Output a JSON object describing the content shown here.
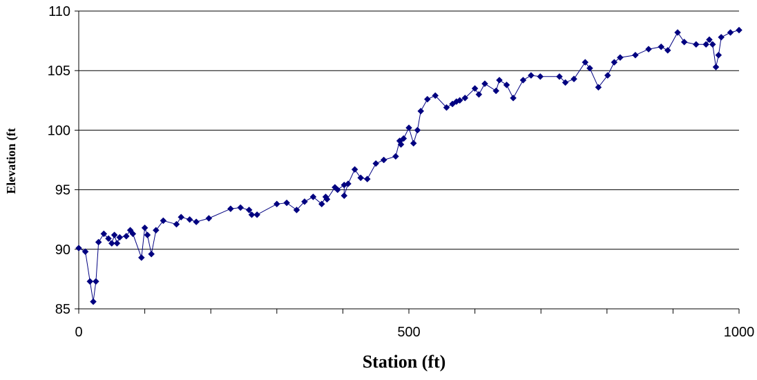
{
  "chart_data": {
    "type": "scatter",
    "title": "",
    "xlabel": "Station (ft)",
    "ylabel": "Elevation (ft",
    "xlim": [
      0,
      1000
    ],
    "ylim": [
      85,
      110
    ],
    "x_ticks": [
      0,
      500,
      1000
    ],
    "y_ticks": [
      85,
      90,
      95,
      100,
      105,
      110
    ],
    "x_tick_labels": [
      "0",
      "500",
      "1000"
    ],
    "y_tick_labels": [
      "85",
      "90",
      "95",
      "100",
      "105",
      "110"
    ],
    "grid": "horizontal",
    "legend": "none",
    "marker": "diamond",
    "line": true,
    "colors": {
      "series": "#000080",
      "grid": "#000000",
      "axis": "#000000"
    },
    "series": [
      {
        "x": [
          0,
          10,
          17,
          22,
          26,
          30,
          38,
          45,
          50,
          54,
          58,
          62,
          72,
          78,
          82,
          95,
          100,
          104,
          110,
          117,
          128,
          148,
          155,
          168,
          178,
          197,
          230,
          245,
          258,
          262,
          270,
          300,
          315,
          330,
          342,
          355,
          368,
          374,
          376,
          388,
          392,
          402,
          402,
          408,
          418,
          427,
          437,
          450,
          462,
          480,
          486,
          488,
          492,
          500,
          507,
          513,
          518,
          528,
          540,
          557,
          566,
          572,
          577,
          585,
          600,
          606,
          615,
          632,
          637,
          648,
          658,
          673,
          685,
          699,
          728,
          737,
          750,
          767,
          774,
          787,
          801,
          811,
          820,
          843,
          863,
          882,
          892,
          907,
          917,
          935,
          950,
          955,
          960,
          965,
          969,
          973,
          987,
          1000
        ],
        "y": [
          90.1,
          89.8,
          87.3,
          85.6,
          87.3,
          90.6,
          91.3,
          90.9,
          90.5,
          91.2,
          90.5,
          91.0,
          91.1,
          91.6,
          91.3,
          89.3,
          91.8,
          91.2,
          89.6,
          91.6,
          92.4,
          92.1,
          92.7,
          92.5,
          92.3,
          92.6,
          93.4,
          93.5,
          93.3,
          92.9,
          92.9,
          93.8,
          93.9,
          93.3,
          94.0,
          94.4,
          93.8,
          94.4,
          94.2,
          95.2,
          95.0,
          95.4,
          94.5,
          95.5,
          96.7,
          96.0,
          95.9,
          97.2,
          97.5,
          97.8,
          99.1,
          98.8,
          99.3,
          100.2,
          98.9,
          100.0,
          101.6,
          102.6,
          102.9,
          101.9,
          102.2,
          102.4,
          102.5,
          102.7,
          103.5,
          103.0,
          103.9,
          103.3,
          104.2,
          103.8,
          102.7,
          104.2,
          104.6,
          104.5,
          104.5,
          104.0,
          104.3,
          105.7,
          105.2,
          103.6,
          104.6,
          105.7,
          106.1,
          106.3,
          106.8,
          107.0,
          106.7,
          108.2,
          107.4,
          107.2,
          107.2,
          107.6,
          107.2,
          105.3,
          106.3,
          107.8,
          108.2,
          108.4
        ]
      }
    ]
  }
}
